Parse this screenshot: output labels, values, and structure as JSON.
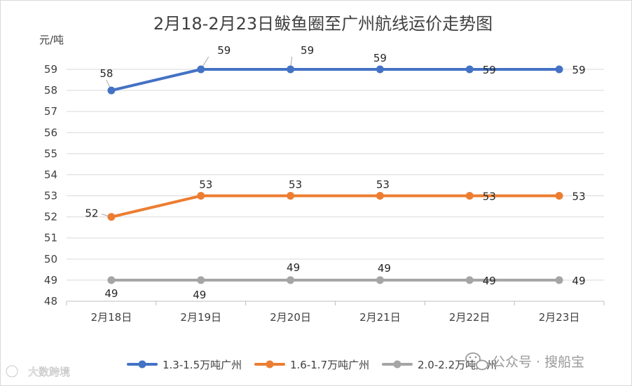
{
  "chart_data": {
    "type": "line",
    "title": "2月18-2月23日鲅鱼圈至广州航线运价走势图",
    "ylabel": "元/吨",
    "categories": [
      "2月18日",
      "2月19日",
      "2月20日",
      "2月21日",
      "2月22日",
      "2月23日"
    ],
    "series": [
      {
        "name": "1.3-1.5万吨广州",
        "color": "#4472c4",
        "values": [
          58,
          59,
          59,
          59,
          59,
          59
        ]
      },
      {
        "name": "1.6-1.7万吨广州",
        "color": "#ed7d31",
        "values": [
          52,
          53,
          53,
          53,
          53,
          53
        ]
      },
      {
        "name": "2.0-2.2万吨广州",
        "color": "#a5a5a5",
        "values": [
          49,
          49,
          49,
          49,
          49,
          49
        ]
      }
    ],
    "ylim": [
      48,
      59
    ],
    "yticks": [
      48,
      49,
      50,
      51,
      52,
      53,
      54,
      55,
      56,
      57,
      58,
      59
    ],
    "grid": true,
    "legend_position": "bottom"
  },
  "watermarks": {
    "wechat_text": "公众号 · 搜船宝",
    "corner_text": "大数跨境"
  }
}
